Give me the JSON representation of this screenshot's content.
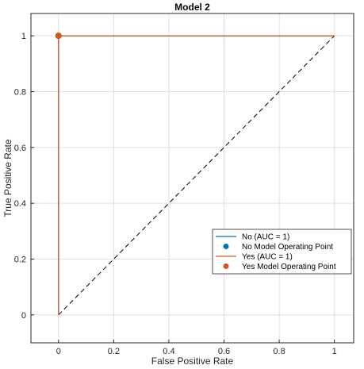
{
  "chart_data": {
    "type": "line",
    "title": "Model 2",
    "xlabel": "False Positive Rate",
    "ylabel": "True Positive Rate",
    "xlim": [
      -0.1,
      1.07
    ],
    "ylim": [
      -0.1,
      1.08
    ],
    "xticks": [
      0,
      0.2,
      0.4,
      0.6,
      0.8,
      1
    ],
    "yticks": [
      0,
      0.2,
      0.4,
      0.6,
      0.8,
      1
    ],
    "xtick_labels": [
      "0",
      "0.2",
      "0.4",
      "0.6",
      "0.8",
      "1"
    ],
    "ytick_labels": [
      "0",
      "0.2",
      "0.4",
      "0.6",
      "0.8",
      "1"
    ],
    "grid": true,
    "legend_position": "lower-right",
    "series": [
      {
        "name": "No (AUC = 1)",
        "kind": "line",
        "color": "#0072BD",
        "x": [
          0,
          0,
          1
        ],
        "y": [
          0,
          1,
          1
        ]
      },
      {
        "name": "No Model Operating Point",
        "kind": "marker",
        "color": "#0072BD",
        "x": [
          0
        ],
        "y": [
          1
        ]
      },
      {
        "name": "Yes (AUC = 1)",
        "kind": "line",
        "color": "#D95319",
        "x": [
          0,
          0,
          1
        ],
        "y": [
          0,
          1,
          1
        ]
      },
      {
        "name": "Yes Model Operating Point",
        "kind": "marker",
        "color": "#D95319",
        "x": [
          0
        ],
        "y": [
          1
        ]
      }
    ],
    "reference_line": {
      "x": [
        0,
        1
      ],
      "y": [
        0,
        1
      ],
      "style": "dashed",
      "color": "#000000"
    }
  }
}
